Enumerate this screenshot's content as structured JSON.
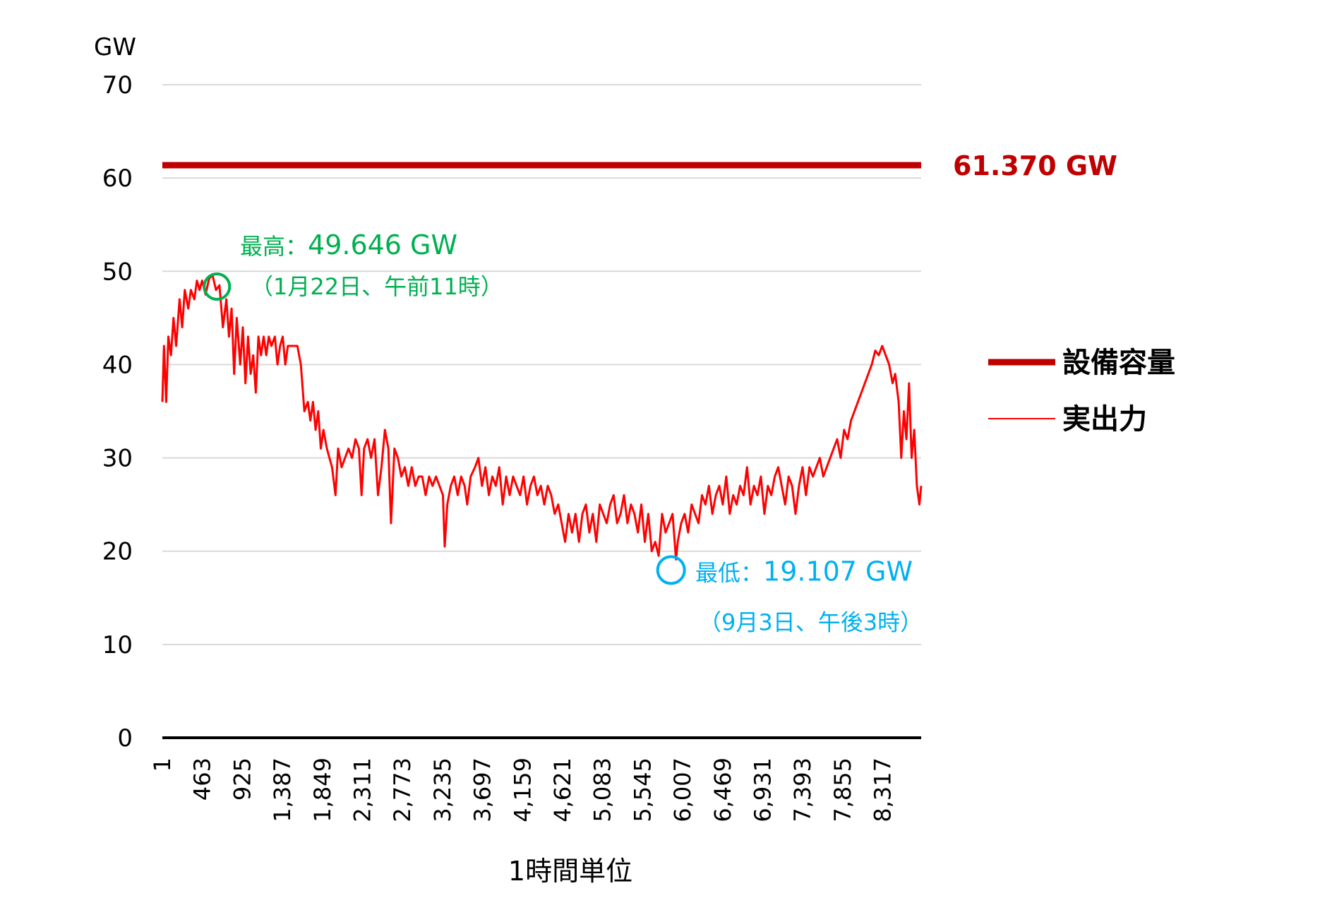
{
  "chart_data": {
    "type": "line",
    "y_unit": "GW",
    "xlabel": "1時間単位",
    "ylim": [
      0,
      70
    ],
    "xlim": [
      1,
      8760
    ],
    "y_ticks": [
      0,
      10,
      20,
      30,
      40,
      50,
      60,
      70
    ],
    "x_ticks": [
      1,
      463,
      925,
      1387,
      1849,
      2311,
      2773,
      3235,
      3697,
      4159,
      4621,
      5083,
      5545,
      6007,
      6469,
      6931,
      7393,
      7855,
      8317
    ],
    "x_tick_labels": [
      "1",
      "463",
      "925",
      "1,387",
      "1,849",
      "2,311",
      "2,773",
      "3,235",
      "3,697",
      "4,159",
      "4,621",
      "5,083",
      "5,545",
      "6,007",
      "6,469",
      "6,931",
      "7,393",
      "7,855",
      "8,317"
    ],
    "grid": true,
    "legend_position": "right",
    "capacity": {
      "name": "設備容量",
      "value": 61.37,
      "label": "61.370 GW",
      "color": "#c00000"
    },
    "actual": {
      "name": "実出力",
      "color": "#ff0000",
      "points": [
        [
          1,
          36
        ],
        [
          20,
          42
        ],
        [
          45,
          36
        ],
        [
          70,
          43
        ],
        [
          100,
          41
        ],
        [
          130,
          45
        ],
        [
          160,
          42
        ],
        [
          200,
          47
        ],
        [
          230,
          44
        ],
        [
          260,
          48
        ],
        [
          300,
          46
        ],
        [
          330,
          48
        ],
        [
          370,
          47
        ],
        [
          400,
          49
        ],
        [
          430,
          48
        ],
        [
          460,
          49
        ],
        [
          500,
          47.5
        ],
        [
          540,
          49.2
        ],
        [
          580,
          49.6
        ],
        [
          620,
          48
        ],
        [
          660,
          48.5
        ],
        [
          700,
          44
        ],
        [
          740,
          47
        ],
        [
          770,
          43
        ],
        [
          800,
          46
        ],
        [
          830,
          39
        ],
        [
          860,
          45
        ],
        [
          900,
          40
        ],
        [
          930,
          44
        ],
        [
          960,
          38
        ],
        [
          990,
          43
        ],
        [
          1020,
          39
        ],
        [
          1050,
          41
        ],
        [
          1080,
          37
        ],
        [
          1110,
          43
        ],
        [
          1140,
          41
        ],
        [
          1170,
          43
        ],
        [
          1200,
          41
        ],
        [
          1230,
          43
        ],
        [
          1260,
          42
        ],
        [
          1300,
          43
        ],
        [
          1330,
          40
        ],
        [
          1360,
          42
        ],
        [
          1390,
          43
        ],
        [
          1420,
          40
        ],
        [
          1450,
          42
        ],
        [
          1480,
          42
        ],
        [
          1520,
          42
        ],
        [
          1560,
          42
        ],
        [
          1600,
          40
        ],
        [
          1640,
          35
        ],
        [
          1680,
          36
        ],
        [
          1710,
          34
        ],
        [
          1740,
          36
        ],
        [
          1770,
          33
        ],
        [
          1800,
          35
        ],
        [
          1830,
          31
        ],
        [
          1860,
          33
        ],
        [
          1900,
          31
        ],
        [
          1930,
          30
        ],
        [
          1960,
          29
        ],
        [
          2000,
          26
        ],
        [
          2030,
          31
        ],
        [
          2070,
          29
        ],
        [
          2110,
          30
        ],
        [
          2150,
          31
        ],
        [
          2190,
          30
        ],
        [
          2230,
          32
        ],
        [
          2270,
          31
        ],
        [
          2300,
          26
        ],
        [
          2330,
          31
        ],
        [
          2370,
          32
        ],
        [
          2410,
          30
        ],
        [
          2450,
          32
        ],
        [
          2490,
          26
        ],
        [
          2530,
          29
        ],
        [
          2570,
          33
        ],
        [
          2610,
          31
        ],
        [
          2640,
          23
        ],
        [
          2680,
          31
        ],
        [
          2720,
          30
        ],
        [
          2760,
          28
        ],
        [
          2800,
          29
        ],
        [
          2840,
          27
        ],
        [
          2880,
          29
        ],
        [
          2920,
          27
        ],
        [
          2960,
          28
        ],
        [
          3000,
          28
        ],
        [
          3040,
          26
        ],
        [
          3080,
          28
        ],
        [
          3120,
          27
        ],
        [
          3160,
          28
        ],
        [
          3200,
          27
        ],
        [
          3240,
          26
        ],
        [
          3260,
          20.5
        ],
        [
          3290,
          25
        ],
        [
          3330,
          27
        ],
        [
          3370,
          28
        ],
        [
          3410,
          26
        ],
        [
          3450,
          28
        ],
        [
          3490,
          27
        ],
        [
          3520,
          25
        ],
        [
          3560,
          28
        ],
        [
          3610,
          29
        ],
        [
          3650,
          30
        ],
        [
          3690,
          27
        ],
        [
          3730,
          29
        ],
        [
          3770,
          26
        ],
        [
          3810,
          28
        ],
        [
          3850,
          27
        ],
        [
          3890,
          29
        ],
        [
          3930,
          25
        ],
        [
          3970,
          28
        ],
        [
          4010,
          26
        ],
        [
          4050,
          28
        ],
        [
          4090,
          27
        ],
        [
          4130,
          26
        ],
        [
          4170,
          28
        ],
        [
          4210,
          25
        ],
        [
          4250,
          27
        ],
        [
          4290,
          28
        ],
        [
          4330,
          26
        ],
        [
          4370,
          27
        ],
        [
          4410,
          25
        ],
        [
          4450,
          27
        ],
        [
          4490,
          26
        ],
        [
          4530,
          24
        ],
        [
          4570,
          25
        ],
        [
          4610,
          23
        ],
        [
          4650,
          21
        ],
        [
          4690,
          24
        ],
        [
          4730,
          22
        ],
        [
          4770,
          24
        ],
        [
          4810,
          21
        ],
        [
          4850,
          24
        ],
        [
          4890,
          25
        ],
        [
          4930,
          22
        ],
        [
          4970,
          24
        ],
        [
          5010,
          21
        ],
        [
          5050,
          25
        ],
        [
          5090,
          24
        ],
        [
          5130,
          23
        ],
        [
          5170,
          25
        ],
        [
          5210,
          26
        ],
        [
          5250,
          23
        ],
        [
          5290,
          24
        ],
        [
          5330,
          26
        ],
        [
          5370,
          23
        ],
        [
          5410,
          25
        ],
        [
          5450,
          24
        ],
        [
          5490,
          22
        ],
        [
          5530,
          25
        ],
        [
          5570,
          21
        ],
        [
          5610,
          24
        ],
        [
          5650,
          20
        ],
        [
          5690,
          21
        ],
        [
          5730,
          19.5
        ],
        [
          5770,
          24
        ],
        [
          5810,
          22
        ],
        [
          5850,
          23
        ],
        [
          5890,
          24
        ],
        [
          5930,
          19.107
        ],
        [
          5950,
          21
        ],
        [
          5990,
          23
        ],
        [
          6030,
          24
        ],
        [
          6070,
          22
        ],
        [
          6110,
          25
        ],
        [
          6150,
          24
        ],
        [
          6190,
          23
        ],
        [
          6230,
          26
        ],
        [
          6270,
          25
        ],
        [
          6310,
          27
        ],
        [
          6350,
          24
        ],
        [
          6390,
          26
        ],
        [
          6430,
          27
        ],
        [
          6470,
          25
        ],
        [
          6510,
          28
        ],
        [
          6550,
          24
        ],
        [
          6590,
          26
        ],
        [
          6630,
          25
        ],
        [
          6670,
          27
        ],
        [
          6710,
          26
        ],
        [
          6750,
          29
        ],
        [
          6790,
          25
        ],
        [
          6830,
          27
        ],
        [
          6870,
          26
        ],
        [
          6910,
          28
        ],
        [
          6950,
          24
        ],
        [
          6990,
          27
        ],
        [
          7030,
          26
        ],
        [
          7070,
          28
        ],
        [
          7110,
          29
        ],
        [
          7150,
          27
        ],
        [
          7190,
          25
        ],
        [
          7230,
          28
        ],
        [
          7270,
          27
        ],
        [
          7310,
          24
        ],
        [
          7350,
          27
        ],
        [
          7390,
          29
        ],
        [
          7430,
          26
        ],
        [
          7470,
          29
        ],
        [
          7510,
          28
        ],
        [
          7550,
          29
        ],
        [
          7590,
          30
        ],
        [
          7630,
          28
        ],
        [
          7670,
          29
        ],
        [
          7710,
          30
        ],
        [
          7750,
          31
        ],
        [
          7790,
          32
        ],
        [
          7830,
          30
        ],
        [
          7870,
          33
        ],
        [
          7910,
          32
        ],
        [
          7950,
          34
        ],
        [
          7990,
          35
        ],
        [
          8030,
          36
        ],
        [
          8070,
          37
        ],
        [
          8110,
          38
        ],
        [
          8150,
          39
        ],
        [
          8190,
          40
        ],
        [
          8230,
          41.5
        ],
        [
          8270,
          41
        ],
        [
          8310,
          42
        ],
        [
          8350,
          41
        ],
        [
          8390,
          40
        ],
        [
          8430,
          38
        ],
        [
          8460,
          39
        ],
        [
          8500,
          36
        ],
        [
          8530,
          30
        ],
        [
          8560,
          35
        ],
        [
          8590,
          32
        ],
        [
          8620,
          38
        ],
        [
          8650,
          30
        ],
        [
          8680,
          33
        ],
        [
          8710,
          27
        ],
        [
          8740,
          25
        ],
        [
          8760,
          27
        ]
      ]
    },
    "annotations": {
      "max": {
        "prefix": "最高：",
        "value": "49.646 GW",
        "date": "（1月22日、午前11時）",
        "x": 590,
        "y": 49.646,
        "color": "#00b050"
      },
      "min": {
        "prefix": "最低：",
        "value": "19.107 GW",
        "date": "（9月3日、午後3時）",
        "x": 5930,
        "y": 19.107,
        "color": "#00b0f0"
      }
    }
  }
}
